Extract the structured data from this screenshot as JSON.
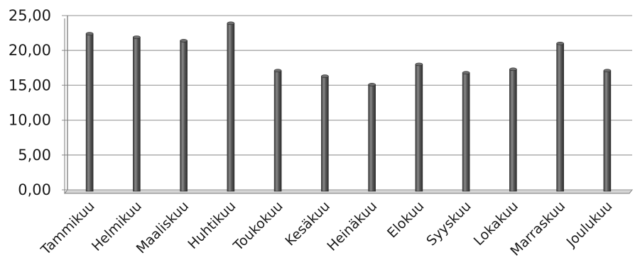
{
  "chart_data": {
    "type": "bar",
    "title": "",
    "xlabel": "",
    "ylabel": "",
    "categories": [
      "Tammikuu",
      "Helmikuu",
      "Maaliskuu",
      "Huhtikuu",
      "Toukokuu",
      "Kesäkuu",
      "Heinäkuu",
      "Elokuu",
      "Syyskuu",
      "Lokakuu",
      "Marraskuu",
      "Joulukuu"
    ],
    "values": [
      22.4,
      21.9,
      21.4,
      23.9,
      17.1,
      16.3,
      15.1,
      18.0,
      16.8,
      17.3,
      21.0,
      17.1
    ],
    "ylim": [
      0,
      25
    ],
    "yticks": [
      "0,00",
      "5,00",
      "10,00",
      "15,00",
      "20,00",
      "25,00"
    ],
    "grid": true,
    "legend": "none",
    "colors": {
      "bar": "#5a5a5a",
      "bar_dark": "#2e2e2e",
      "bar_light": "#9a9a9a",
      "grid": "#a6a6a6",
      "axis": "#7a7a7a"
    }
  }
}
